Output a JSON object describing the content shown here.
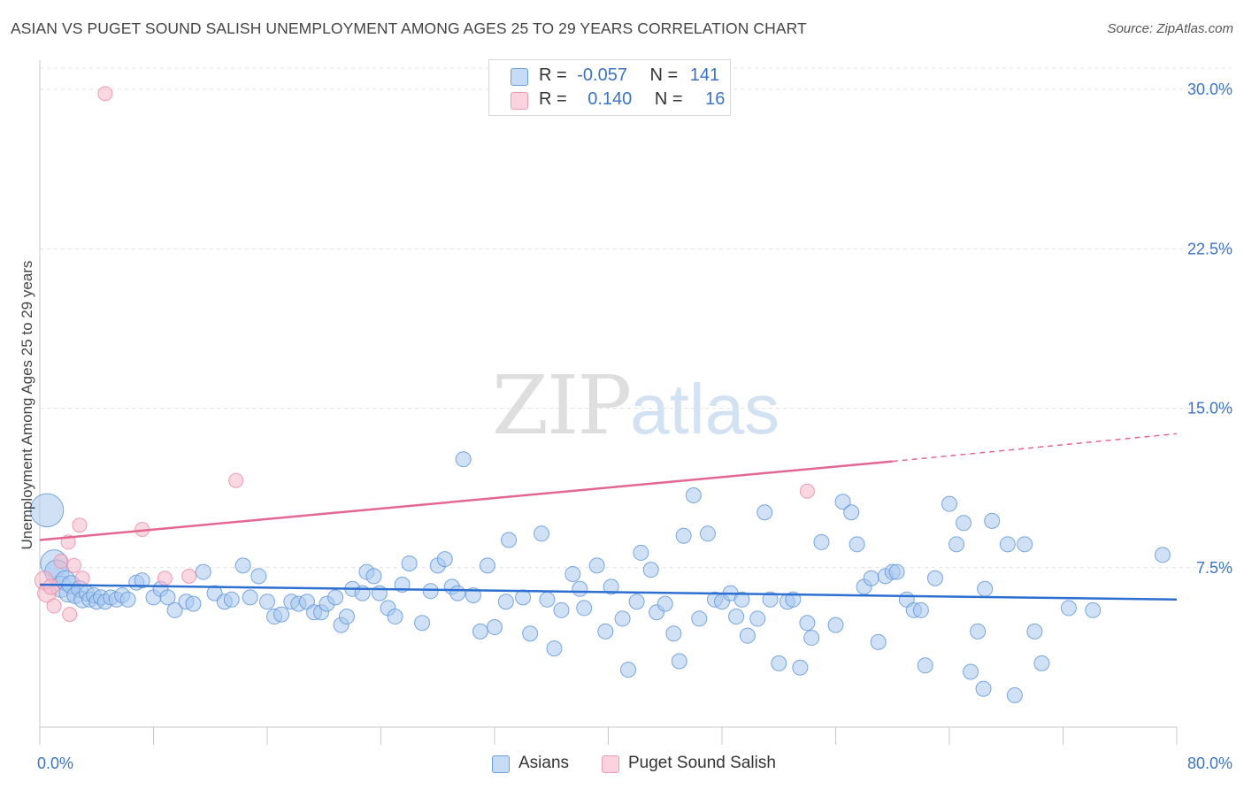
{
  "header": {
    "title": "ASIAN VS PUGET SOUND SALISH UNEMPLOYMENT AMONG AGES 25 TO 29 YEARS CORRELATION CHART",
    "source": "Source: ZipAtlas.com"
  },
  "watermark": {
    "zip": "ZIP",
    "atlas": "atlas"
  },
  "legend": {
    "rows": [
      {
        "r_label": "R =",
        "r_value": "-0.057",
        "n_label": "N =",
        "n_value": "141",
        "color": "#a9c8ef"
      },
      {
        "r_label": "R =",
        "r_value": "0.140",
        "n_label": "N =",
        "n_value": "16",
        "color": "#f5b8cb"
      }
    ]
  },
  "bottom_legend": {
    "items": [
      {
        "label": "Asians",
        "color": "#a9c8ef"
      },
      {
        "label": "Puget Sound Salish",
        "color": "#f5b8cb"
      }
    ]
  },
  "chart_data": {
    "type": "scatter",
    "title": "ASIAN VS PUGET SOUND SALISH UNEMPLOYMENT AMONG AGES 25 TO 29 YEARS CORRELATION CHART",
    "xlabel": "",
    "ylabel": "Unemployment Among Ages 25 to 29 years",
    "xlim": [
      0,
      80
    ],
    "ylim": [
      0,
      31
    ],
    "x_tick_labels": [
      "0.0%",
      "80.0%"
    ],
    "y_ticks": [
      7.5,
      15.0,
      22.5,
      30.0
    ],
    "y_tick_labels": [
      "7.5%",
      "15.0%",
      "22.5%",
      "30.0%"
    ],
    "grid": "horizontal dashed",
    "legend_position": "top-center",
    "colors": {
      "asians": "#a9c8ef",
      "asians_edge": "#5b93d8",
      "asians_line": "#2d6fd0",
      "salish": "#f5b8cb",
      "salish_edge": "#e98aa8",
      "salish_line": "#e3678f"
    },
    "series": [
      {
        "name": "Asians",
        "trend": {
          "x": [
            0,
            80
          ],
          "y": [
            6.7,
            6.0
          ]
        },
        "points": [
          [
            0.5,
            10.2,
            2.2
          ],
          [
            1.0,
            7.7,
            1.8
          ],
          [
            1.2,
            7.3,
            1.6
          ],
          [
            1.5,
            6.6,
            1.4
          ],
          [
            1.8,
            6.9,
            1.3
          ],
          [
            2.0,
            6.3,
            1.2
          ],
          [
            2.2,
            6.7,
            1.2
          ],
          [
            2.5,
            6.2,
            1.1
          ],
          [
            2.8,
            6.5,
            1.1
          ],
          [
            3.0,
            6.0,
            1.1
          ],
          [
            3.3,
            6.3,
            1.0
          ],
          [
            3.5,
            6.0,
            1.0
          ],
          [
            3.8,
            6.2,
            1.0
          ],
          [
            4.0,
            5.9,
            1.0
          ],
          [
            4.3,
            6.1,
            1.0
          ],
          [
            4.6,
            5.9,
            1.0
          ],
          [
            5.0,
            6.1,
            1.0
          ],
          [
            5.4,
            6.0,
            1.0
          ],
          [
            5.8,
            6.2,
            1.0
          ],
          [
            6.2,
            6.0,
            1.0
          ],
          [
            6.8,
            6.8,
            1.0
          ],
          [
            7.2,
            6.9,
            1.0
          ],
          [
            8.0,
            6.1,
            1.0
          ],
          [
            8.5,
            6.5,
            1.0
          ],
          [
            9.0,
            6.1,
            1.0
          ],
          [
            9.5,
            5.5,
            1.0
          ],
          [
            10.3,
            5.9,
            1.0
          ],
          [
            10.8,
            5.8,
            1.0
          ],
          [
            11.5,
            7.3,
            1.0
          ],
          [
            12.3,
            6.3,
            1.0
          ],
          [
            13.0,
            5.9,
            1.0
          ],
          [
            13.5,
            6.0,
            1.0
          ],
          [
            14.3,
            7.6,
            1.0
          ],
          [
            14.8,
            6.1,
            1.0
          ],
          [
            15.4,
            7.1,
            1.0
          ],
          [
            16.0,
            5.9,
            1.0
          ],
          [
            16.5,
            5.2,
            1.0
          ],
          [
            17.0,
            5.3,
            1.0
          ],
          [
            17.7,
            5.9,
            1.0
          ],
          [
            18.2,
            5.8,
            1.0
          ],
          [
            18.8,
            5.9,
            1.0
          ],
          [
            19.3,
            5.4,
            1.0
          ],
          [
            19.8,
            5.4,
            1.0
          ],
          [
            20.2,
            5.8,
            1.0
          ],
          [
            20.8,
            6.1,
            1.0
          ],
          [
            21.2,
            4.8,
            1.0
          ],
          [
            21.6,
            5.2,
            1.0
          ],
          [
            22.0,
            6.5,
            1.0
          ],
          [
            22.7,
            6.3,
            1.0
          ],
          [
            23.0,
            7.3,
            1.0
          ],
          [
            23.5,
            7.1,
            1.0
          ],
          [
            23.9,
            6.3,
            1.0
          ],
          [
            24.5,
            5.6,
            1.0
          ],
          [
            25.0,
            5.2,
            1.0
          ],
          [
            25.5,
            6.7,
            1.0
          ],
          [
            26.0,
            7.7,
            1.0
          ],
          [
            26.9,
            4.9,
            1.0
          ],
          [
            27.5,
            6.4,
            1.0
          ],
          [
            28.0,
            7.6,
            1.0
          ],
          [
            28.5,
            7.9,
            1.0
          ],
          [
            29.0,
            6.6,
            1.0
          ],
          [
            29.4,
            6.3,
            1.0
          ],
          [
            29.8,
            12.6,
            1.0
          ],
          [
            30.5,
            6.2,
            1.0
          ],
          [
            31.0,
            4.5,
            1.0
          ],
          [
            31.5,
            7.6,
            1.0
          ],
          [
            32.0,
            4.7,
            1.0
          ],
          [
            32.8,
            5.9,
            1.0
          ],
          [
            33.0,
            8.8,
            1.0
          ],
          [
            34.0,
            6.1,
            1.0
          ],
          [
            34.5,
            4.4,
            1.0
          ],
          [
            35.3,
            9.1,
            1.0
          ],
          [
            35.7,
            6.0,
            1.0
          ],
          [
            36.2,
            3.7,
            1.0
          ],
          [
            36.7,
            5.5,
            1.0
          ],
          [
            37.5,
            7.2,
            1.0
          ],
          [
            38.0,
            6.5,
            1.0
          ],
          [
            38.3,
            5.6,
            1.0
          ],
          [
            39.2,
            7.6,
            1.0
          ],
          [
            39.8,
            4.5,
            1.0
          ],
          [
            40.2,
            6.6,
            1.0
          ],
          [
            41.0,
            5.1,
            1.0
          ],
          [
            41.4,
            2.7,
            1.0
          ],
          [
            42.0,
            5.9,
            1.0
          ],
          [
            42.3,
            8.2,
            1.0
          ],
          [
            43.0,
            7.4,
            1.0
          ],
          [
            43.4,
            5.4,
            1.0
          ],
          [
            44.0,
            5.8,
            1.0
          ],
          [
            44.6,
            4.4,
            1.0
          ],
          [
            45.0,
            3.1,
            1.0
          ],
          [
            45.3,
            9.0,
            1.0
          ],
          [
            46.0,
            10.9,
            1.0
          ],
          [
            46.4,
            5.1,
            1.0
          ],
          [
            47.0,
            9.1,
            1.0
          ],
          [
            47.5,
            6.0,
            1.0
          ],
          [
            48.0,
            5.9,
            1.0
          ],
          [
            48.6,
            6.3,
            1.0
          ],
          [
            49.0,
            5.2,
            1.0
          ],
          [
            49.4,
            6.0,
            1.0
          ],
          [
            49.8,
            4.3,
            1.0
          ],
          [
            50.5,
            5.1,
            1.0
          ],
          [
            51.0,
            10.1,
            1.0
          ],
          [
            51.4,
            6.0,
            1.0
          ],
          [
            52.0,
            3.0,
            1.0
          ],
          [
            52.6,
            5.9,
            1.0
          ],
          [
            53.0,
            6.0,
            1.0
          ],
          [
            53.5,
            2.8,
            1.0
          ],
          [
            54.0,
            4.9,
            1.0
          ],
          [
            54.3,
            4.2,
            1.0
          ],
          [
            55.0,
            8.7,
            1.0
          ],
          [
            56.0,
            4.8,
            1.0
          ],
          [
            56.5,
            10.6,
            1.0
          ],
          [
            57.1,
            10.1,
            1.0
          ],
          [
            57.5,
            8.6,
            1.0
          ],
          [
            58.0,
            6.6,
            1.0
          ],
          [
            58.5,
            7.0,
            1.0
          ],
          [
            59.0,
            4.0,
            1.0
          ],
          [
            59.5,
            7.1,
            1.0
          ],
          [
            60.0,
            7.3,
            1.0
          ],
          [
            60.3,
            7.3,
            1.0
          ],
          [
            61.0,
            6.0,
            1.0
          ],
          [
            61.5,
            5.5,
            1.0
          ],
          [
            62.0,
            5.5,
            1.0
          ],
          [
            62.3,
            2.9,
            1.0
          ],
          [
            63.0,
            7.0,
            1.0
          ],
          [
            64.0,
            10.5,
            1.0
          ],
          [
            64.5,
            8.6,
            1.0
          ],
          [
            65.0,
            9.6,
            1.0
          ],
          [
            65.5,
            2.6,
            1.0
          ],
          [
            66.0,
            4.5,
            1.0
          ],
          [
            66.4,
            1.8,
            1.0
          ],
          [
            66.5,
            6.5,
            1.0
          ],
          [
            67.0,
            9.7,
            1.0
          ],
          [
            68.1,
            8.6,
            1.0
          ],
          [
            68.6,
            1.5,
            1.0
          ],
          [
            69.3,
            8.6,
            1.0
          ],
          [
            70.0,
            4.5,
            1.0
          ],
          [
            70.5,
            3.0,
            1.0
          ],
          [
            72.4,
            5.6,
            1.0
          ],
          [
            74.1,
            5.5,
            1.0
          ],
          [
            79.0,
            8.1,
            1.0
          ]
        ]
      },
      {
        "name": "Puget Sound Salish",
        "trend": {
          "x": [
            0,
            60
          ],
          "y": [
            8.8,
            12.5
          ]
        },
        "trend_dashed": {
          "x": [
            60,
            80
          ],
          "y": [
            12.5,
            13.8
          ]
        },
        "points": [
          [
            0.3,
            6.9,
            1.3
          ],
          [
            0.5,
            6.3,
            1.3
          ],
          [
            0.8,
            6.6,
            1.1
          ],
          [
            1.0,
            5.7,
            1.0
          ],
          [
            1.5,
            7.8,
            1.0
          ],
          [
            2.0,
            8.7,
            1.0
          ],
          [
            2.1,
            5.3,
            1.0
          ],
          [
            2.4,
            7.6,
            1.0
          ],
          [
            2.8,
            9.5,
            1.0
          ],
          [
            3.0,
            7.0,
            1.0
          ],
          [
            4.6,
            29.8,
            1.0
          ],
          [
            7.2,
            9.3,
            1.0
          ],
          [
            8.8,
            7.0,
            1.0
          ],
          [
            10.5,
            7.1,
            1.0
          ],
          [
            13.8,
            11.6,
            1.0
          ],
          [
            54.0,
            11.1,
            1.0
          ]
        ]
      }
    ]
  }
}
